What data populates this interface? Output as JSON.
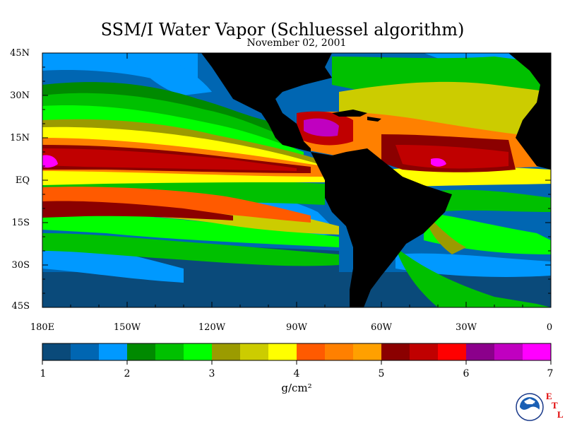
{
  "title": "SSM/I Water Vapor (Schluessel algorithm)",
  "subtitle": "November 02, 2001",
  "lat_labels": [
    "45N",
    "30N",
    "15N",
    "EQ",
    "15S",
    "30S",
    "45S"
  ],
  "lon_labels": [
    "180E",
    "150W",
    "120W",
    "90W",
    "60W",
    "30W",
    "0"
  ],
  "colorbar": {
    "colors": [
      "#0a4a7a",
      "#0066b2",
      "#0099ff",
      "#008a00",
      "#00c000",
      "#00ff00",
      "#9b9b00",
      "#cccc00",
      "#ffff00",
      "#ff5a00",
      "#ff8000",
      "#ffa000",
      "#8b0000",
      "#c00000",
      "#ff0000",
      "#8b008b",
      "#c000c0",
      "#ff00ff"
    ],
    "labels": [
      "1",
      "2",
      "3",
      "4",
      "5",
      "6",
      "7"
    ],
    "unit": "g/cm²"
  },
  "logo": {
    "name": "NOAA",
    "etl": [
      "E",
      "T",
      "L"
    ]
  },
  "colors": {
    "land": "#000000",
    "background": "#ffffff"
  }
}
